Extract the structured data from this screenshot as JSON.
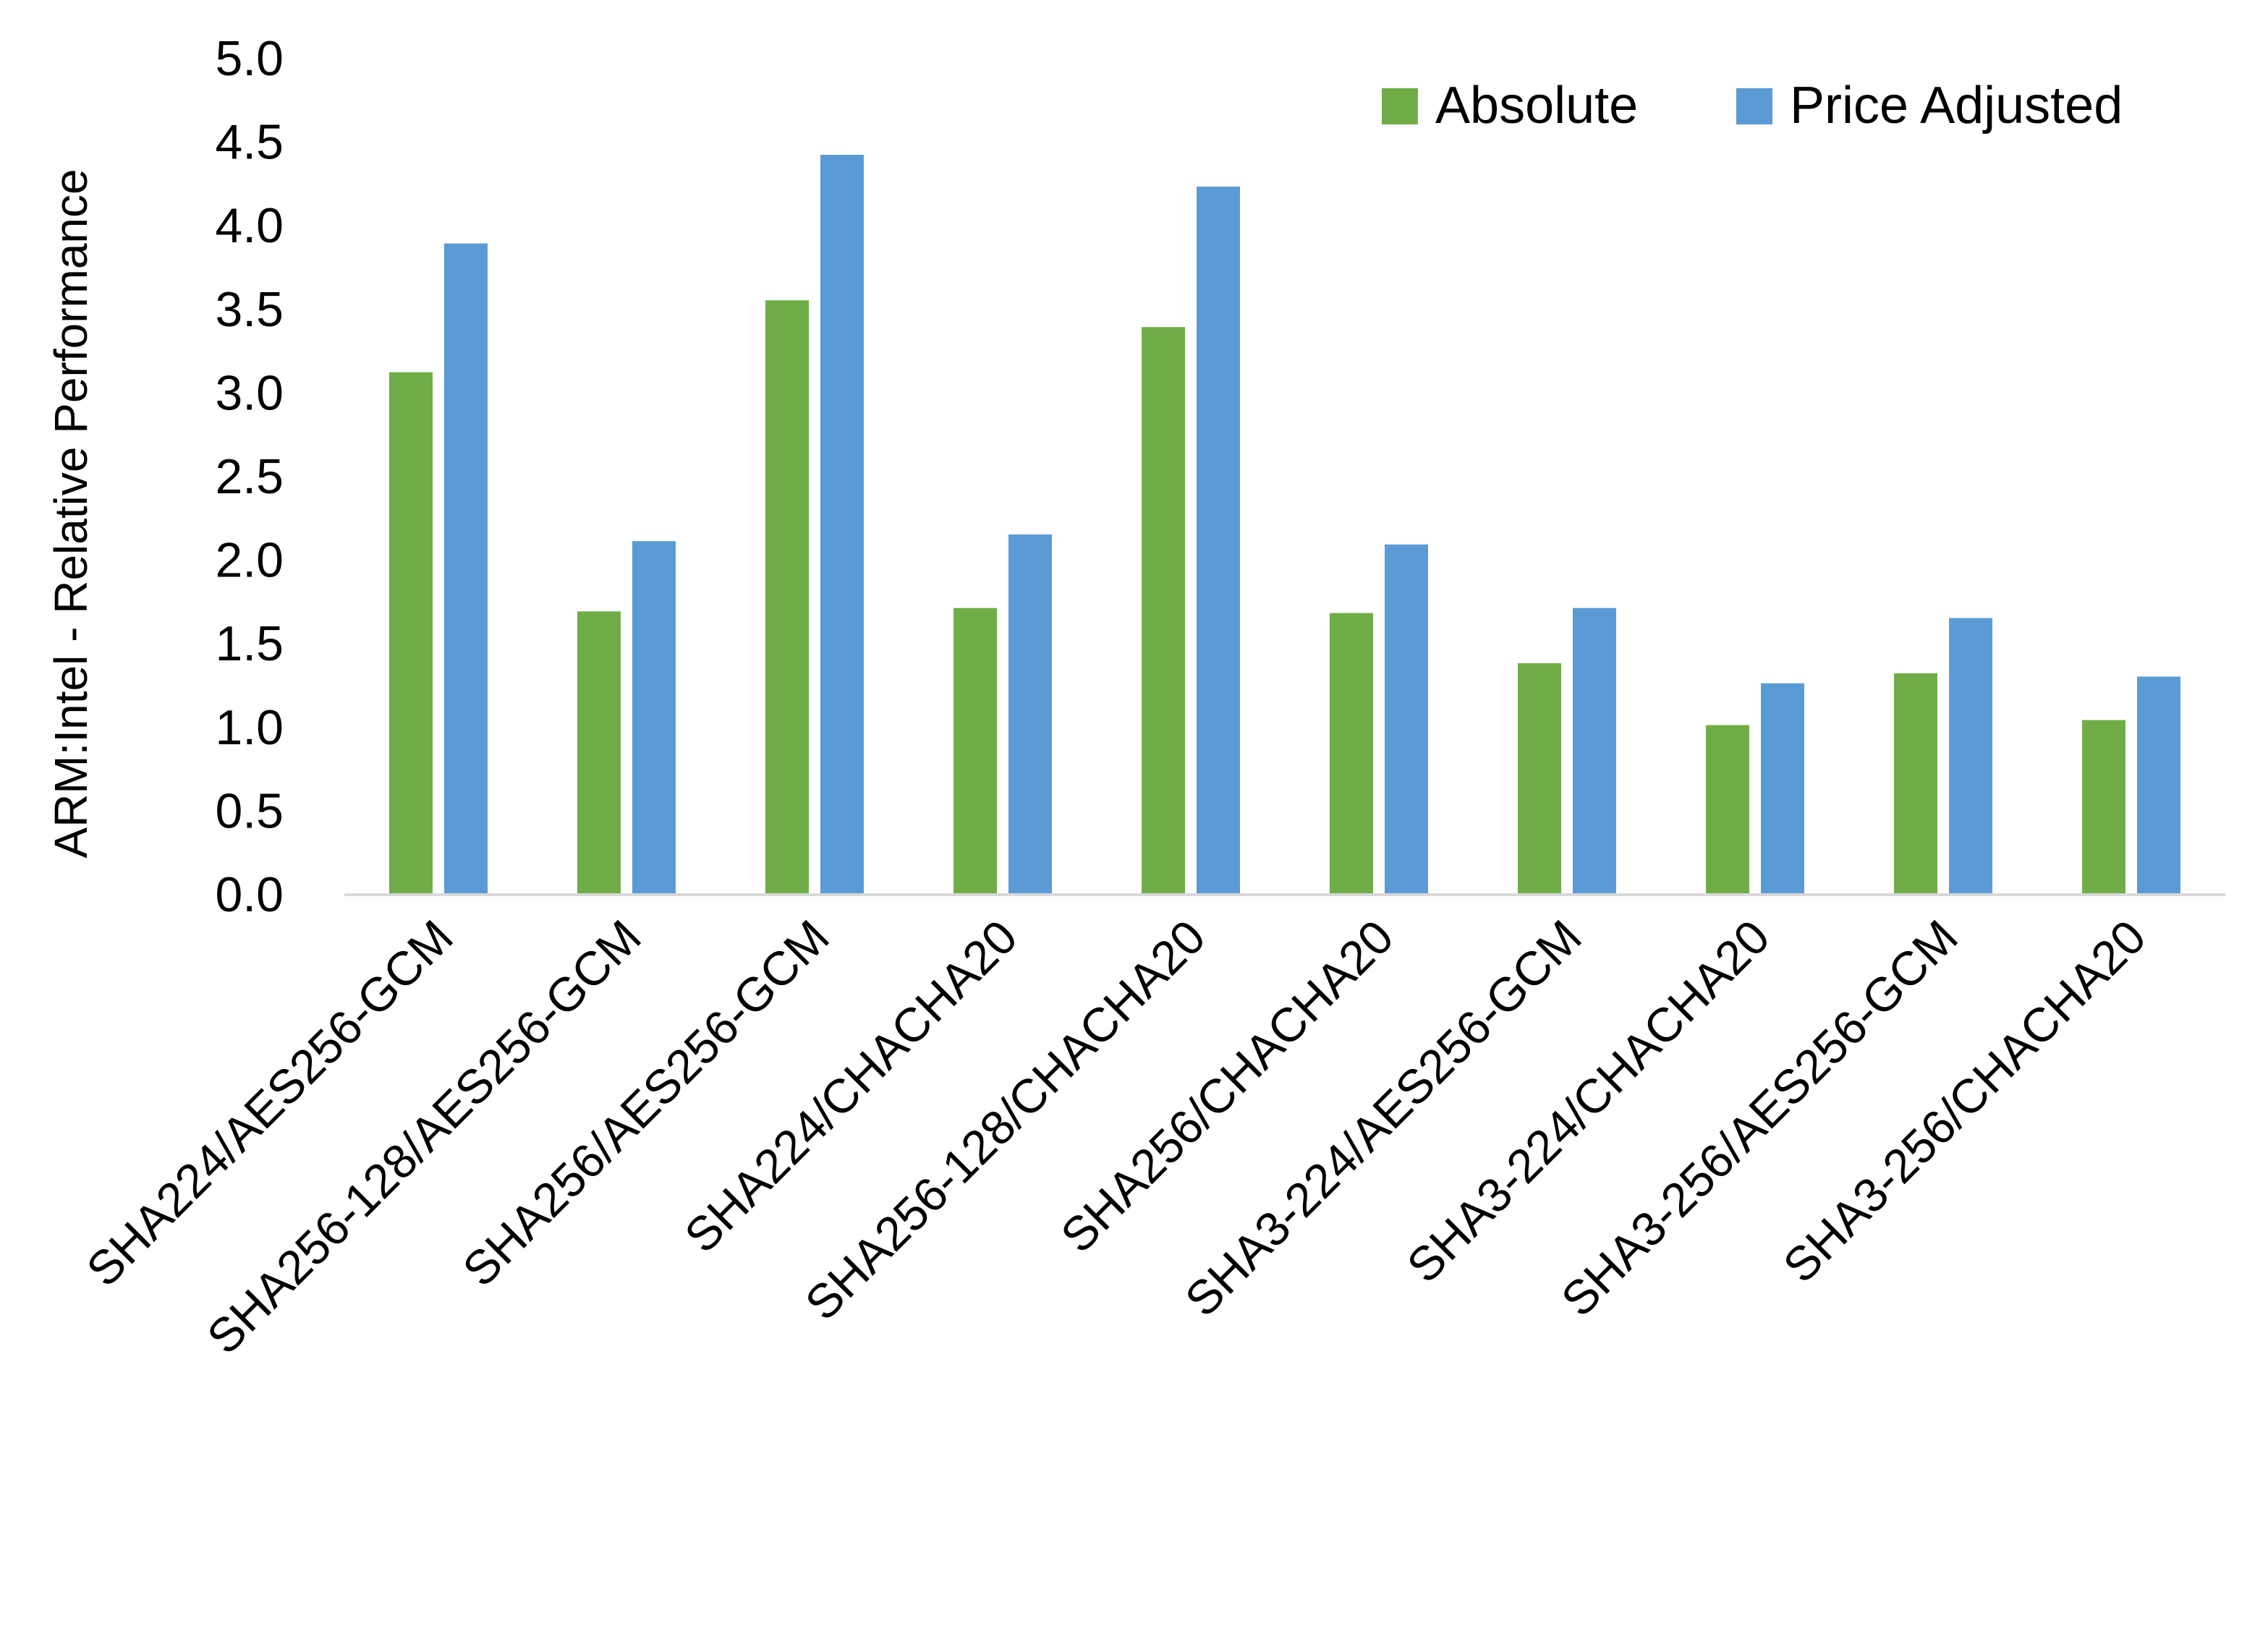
{
  "chart_data": {
    "type": "bar",
    "title": "",
    "xlabel": "",
    "ylabel": "ARM:Intel - Relative Performance",
    "ylim": [
      0,
      5
    ],
    "yticks": [
      "0.0",
      "0.5",
      "1.0",
      "1.5",
      "2.0",
      "2.5",
      "3.0",
      "3.5",
      "4.0",
      "4.5",
      "5.0"
    ],
    "grid": false,
    "legend": "top-right",
    "categories": [
      "SHA224/AES256-GCM",
      "SHA256-128/AES256-GCM",
      "SHA256/AES256-GCM",
      "SHA224/CHACHA20",
      "SHA256-128/CHACHA20",
      "SHA256/CHACHA20",
      "SHA3-224/AES256-GCM",
      "SHA3-224/CHACHA20",
      "SHA3-256/AES256-GCM",
      "SHA3-256/CHACHA20"
    ],
    "series": [
      {
        "name": "Absolute",
        "color": "#70AD47",
        "values": [
          3.12,
          1.69,
          3.55,
          1.71,
          3.39,
          1.68,
          1.38,
          1.01,
          1.32,
          1.04
        ]
      },
      {
        "name": "Price Adjusted",
        "color": "#5B9BD5",
        "values": [
          3.89,
          2.11,
          4.42,
          2.15,
          4.23,
          2.09,
          1.71,
          1.26,
          1.65,
          1.3
        ]
      }
    ]
  }
}
